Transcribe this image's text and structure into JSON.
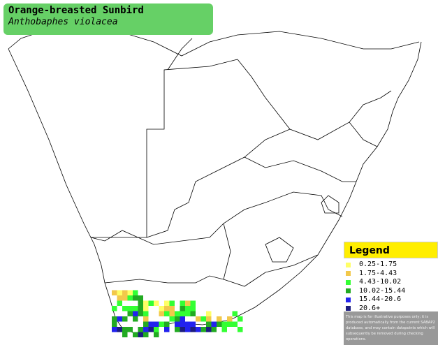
{
  "header": {
    "title": "Orange-breasted Sunbird",
    "subtitle": "Anthobaphes violacea"
  },
  "legend": {
    "title": "Legend",
    "items": [
      {
        "label": "0.25-1.75",
        "color": "#ffff66"
      },
      {
        "label": "1.75-4.43",
        "color": "#f2c84b"
      },
      {
        "label": "4.43-10.02",
        "color": "#33ff33"
      },
      {
        "label": "10.02-15.44",
        "color": "#22aa22"
      },
      {
        "label": "15.44-20.6",
        "color": "#2222ee"
      },
      {
        "label": "20.6+",
        "color": "#1c1c80"
      }
    ],
    "disclaimer": "This map is for illustrative purposes only; it is produced automatically from the current SABAP2 database, and may contain datapoints which will subsequently be removed during checking operations."
  }
}
